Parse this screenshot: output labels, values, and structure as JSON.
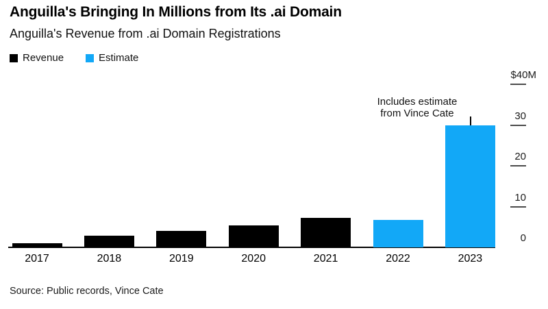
{
  "header": {
    "title": "Anguilla's Bringing In Millions from Its .ai Domain",
    "subtitle": "Anguilla's Revenue from .ai Domain Registrations"
  },
  "colors": {
    "revenue_black": "#000000",
    "estimate_blue": "#12A8F7",
    "axis_black": "#000000"
  },
  "chart_data": {
    "type": "bar",
    "title": "Anguilla's Bringing In Millions from Its .ai Domain",
    "subtitle": "Anguilla's Revenue from .ai Domain Registrations",
    "categories": [
      "2017",
      "2018",
      "2019",
      "2020",
      "2021",
      "2022",
      "2023"
    ],
    "series": [
      {
        "name": "Revenue",
        "color": "#000000",
        "values": [
          1.0,
          2.8,
          4.0,
          5.3,
          7.3,
          null,
          null
        ]
      },
      {
        "name": "Estimate",
        "color": "#12A8F7",
        "values": [
          null,
          null,
          null,
          null,
          null,
          6.8,
          30
        ]
      }
    ],
    "ylabel": "",
    "xlabel": "",
    "ylim": [
      0,
      40
    ],
    "y_ticks": [
      {
        "value": 40,
        "label": "$40M"
      },
      {
        "value": 30,
        "label": "30"
      },
      {
        "value": 20,
        "label": "20"
      },
      {
        "value": 10,
        "label": "10"
      },
      {
        "value": 0,
        "label": "0"
      }
    ],
    "axis_side": "right",
    "grid": false,
    "legend_position": "top-left",
    "annotation": {
      "text": "Includes estimate from Vince Cate",
      "target_category": "2023"
    }
  },
  "footer": {
    "source": "Source: Public records, Vince Cate"
  }
}
